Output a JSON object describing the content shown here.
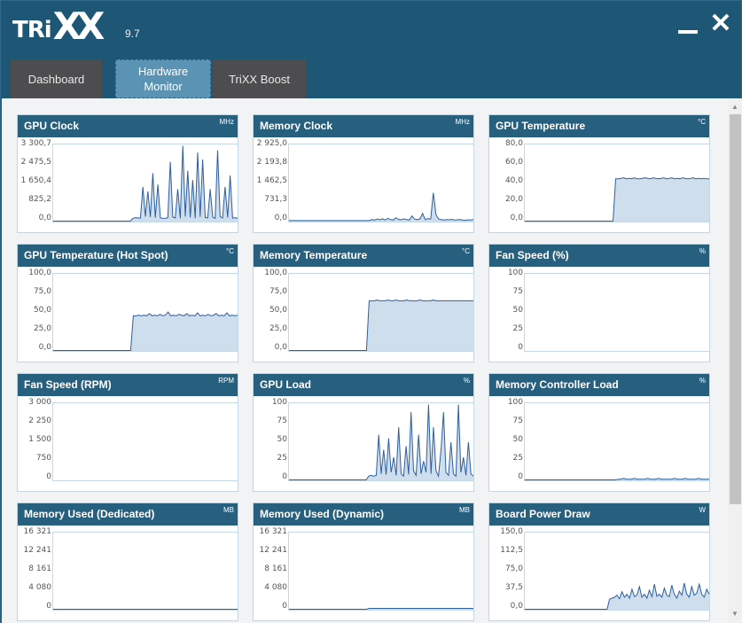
{
  "app": {
    "logo_main": "TRi",
    "logo_xx": "XX",
    "version": "9.7",
    "minimize_icon": "minimize-icon",
    "close_icon": "close-icon",
    "close_glyph": "✕"
  },
  "tabs": [
    {
      "label": "Dashboard",
      "active": false
    },
    {
      "label": "Hardware Monitor",
      "active": true
    },
    {
      "label": "TriXX Boost",
      "active": false
    }
  ],
  "colors": {
    "header": "#275f7f",
    "line": "#2d5fa0",
    "fill": "#cfdeec",
    "active_tab": "#5a93b4",
    "tab": "#4d4d4f"
  },
  "chart_data": [
    {
      "type": "area",
      "title": "GPU Clock",
      "unit": "MHz",
      "ticks": [
        "3 300,7",
        "2 475,5",
        "1 650,4",
        "825,2",
        "0,0"
      ],
      "ylim": [
        0,
        3300.7
      ],
      "values": [
        0,
        0,
        0,
        0,
        0,
        0,
        0,
        0,
        0,
        0,
        0,
        0,
        0,
        0,
        0,
        0,
        0,
        0,
        0,
        0,
        0,
        0,
        0,
        0,
        0,
        0,
        0,
        0,
        0,
        0,
        0,
        0,
        120,
        150,
        140,
        130,
        1500,
        200,
        1300,
        180,
        2100,
        150,
        1600,
        140,
        130,
        120,
        150,
        2600,
        180,
        140,
        1400,
        120,
        3300,
        200,
        2200,
        160,
        1800,
        130,
        3000,
        180,
        2700,
        160,
        140,
        1400,
        180,
        120,
        3100,
        200,
        140,
        1500,
        160,
        2000,
        130,
        150,
        120
      ]
    },
    {
      "type": "area",
      "title": "Memory Clock",
      "unit": "MHz",
      "ticks": [
        "2 925,0",
        "2 193,8",
        "1 462,5",
        "731,3",
        "0,0"
      ],
      "ylim": [
        0,
        2925
      ],
      "values": [
        20,
        20,
        20,
        20,
        20,
        20,
        20,
        20,
        20,
        20,
        20,
        20,
        20,
        20,
        20,
        20,
        20,
        20,
        20,
        20,
        20,
        20,
        20,
        20,
        20,
        20,
        20,
        20,
        20,
        20,
        20,
        60,
        40,
        80,
        50,
        90,
        40,
        110,
        60,
        40,
        130,
        70,
        50,
        90,
        60,
        40,
        200,
        80,
        60,
        90,
        300,
        60,
        100,
        80,
        1100,
        250,
        80,
        60,
        40,
        60,
        50,
        70,
        40,
        50,
        60,
        40,
        30,
        50,
        40,
        60
      ]
    },
    {
      "type": "area",
      "title": "GPU Temperature",
      "unit": "°C",
      "ticks": [
        "80,0",
        "60,0",
        "40,0",
        "20,0",
        "0,0"
      ],
      "ylim": [
        0,
        80
      ],
      "values": [
        0,
        0,
        0,
        0,
        0,
        0,
        0,
        0,
        0,
        0,
        0,
        0,
        0,
        0,
        0,
        0,
        0,
        0,
        0,
        0,
        0,
        0,
        0,
        0,
        0,
        0,
        0,
        0,
        0,
        0,
        0,
        0,
        0,
        0,
        45,
        45,
        45.5,
        46,
        45,
        45.5,
        45,
        46,
        45,
        45,
        45.5,
        46,
        45.5,
        45,
        46,
        45.5,
        45,
        45.5,
        46,
        45,
        45.5,
        46,
        45,
        45.5,
        45,
        46,
        45.5,
        45,
        45.5,
        46,
        45,
        45.5,
        45,
        45.5,
        45,
        45
      ]
    },
    {
      "type": "area",
      "title": "GPU Temperature (Hot Spot)",
      "unit": "°C",
      "ticks": [
        "100,0",
        "75,0",
        "50,0",
        "25,0",
        "0,0"
      ],
      "ylim": [
        0,
        100
      ],
      "values": [
        0,
        0,
        0,
        0,
        0,
        0,
        0,
        0,
        0,
        0,
        0,
        0,
        0,
        0,
        0,
        0,
        0,
        0,
        0,
        0,
        0,
        0,
        0,
        0,
        0,
        0,
        0,
        0,
        0,
        0,
        46,
        46,
        47,
        46,
        47,
        46,
        49,
        46,
        47,
        46,
        48,
        46,
        47,
        51,
        46,
        47,
        46,
        48,
        47,
        46,
        49,
        46,
        47,
        46,
        50,
        46,
        47,
        46,
        48,
        46,
        47,
        49,
        46,
        47,
        46,
        50,
        46,
        47,
        46,
        47
      ]
    },
    {
      "type": "area",
      "title": "Memory Temperature",
      "unit": "°C",
      "ticks": [
        "100,0",
        "75,0",
        "50,0",
        "25,0",
        "0,0"
      ],
      "ylim": [
        0,
        100
      ],
      "values": [
        0,
        0,
        0,
        0,
        0,
        0,
        0,
        0,
        0,
        0,
        0,
        0,
        0,
        0,
        0,
        0,
        0,
        0,
        0,
        0,
        0,
        0,
        0,
        0,
        0,
        0,
        0,
        0,
        0,
        0,
        66,
        66,
        66,
        67,
        66,
        66,
        66,
        67,
        66,
        66,
        67,
        66,
        66,
        66,
        67,
        66,
        66,
        66,
        66,
        67,
        66,
        66,
        66,
        66,
        67,
        66,
        66,
        66,
        66,
        66,
        66,
        66,
        66,
        66,
        66,
        66,
        66,
        66,
        66,
        66
      ]
    },
    {
      "type": "area",
      "title": "Fan Speed (%)",
      "unit": "%",
      "ticks": [
        "100",
        "75",
        "50",
        "25",
        "0"
      ],
      "ylim": [
        0,
        100
      ],
      "values": []
    },
    {
      "type": "area",
      "title": "Fan Speed (RPM)",
      "unit": "RPM",
      "ticks": [
        "3 000",
        "2 250",
        "1 500",
        "750",
        "0"
      ],
      "ylim": [
        0,
        3000
      ],
      "values": []
    },
    {
      "type": "area",
      "title": "GPU Load",
      "unit": "%",
      "ticks": [
        "100",
        "75",
        "50",
        "25",
        "0"
      ],
      "ylim": [
        0,
        100
      ],
      "values": [
        0,
        0,
        0,
        0,
        0,
        0,
        0,
        0,
        0,
        0,
        0,
        0,
        0,
        0,
        0,
        0,
        0,
        0,
        0,
        0,
        0,
        0,
        0,
        0,
        0,
        0,
        0,
        0,
        0,
        0,
        0,
        0,
        5,
        6,
        5,
        6,
        60,
        8,
        40,
        7,
        55,
        10,
        30,
        6,
        70,
        8,
        5,
        45,
        7,
        90,
        12,
        6,
        60,
        8,
        25,
        10,
        100,
        8,
        70,
        12,
        5,
        40,
        90,
        10,
        6,
        50,
        8,
        5,
        100,
        10,
        30,
        6,
        50,
        8,
        5
      ]
    },
    {
      "type": "area",
      "title": "Memory Controller Load",
      "unit": "%",
      "ticks": [
        "100",
        "75",
        "50",
        "25",
        "0"
      ],
      "ylim": [
        0,
        100
      ],
      "values": [
        0,
        0,
        0,
        0,
        0,
        0,
        0,
        0,
        0,
        0,
        0,
        0,
        0,
        0,
        0,
        0,
        0,
        0,
        0,
        0,
        0,
        0,
        0,
        0,
        0,
        0,
        0,
        0,
        0,
        0,
        0,
        0,
        0,
        0,
        0,
        1,
        1,
        2,
        1,
        1,
        1,
        2,
        1,
        1,
        1,
        1,
        2,
        1,
        1,
        1,
        2,
        1,
        1,
        1,
        1,
        1,
        2,
        1,
        1,
        1,
        2,
        1,
        1,
        1,
        1,
        2,
        1,
        1,
        1,
        1
      ]
    },
    {
      "type": "area",
      "title": "Memory Used (Dedicated)",
      "unit": "MB",
      "ticks": [
        "16 321",
        "12 241",
        "8 161",
        "4 080",
        "0"
      ],
      "ylim": [
        0,
        16321
      ],
      "values": [
        0,
        0,
        0,
        0,
        0,
        0,
        0,
        0,
        0,
        0,
        0,
        0,
        0,
        0,
        0,
        0,
        0,
        0,
        0,
        0,
        0,
        0,
        0,
        0,
        0,
        0,
        0,
        0,
        0,
        0,
        0,
        0,
        0,
        0,
        0,
        0,
        0,
        0,
        0,
        0,
        0,
        0,
        0,
        0,
        0,
        0,
        0,
        0,
        0,
        0,
        0,
        0,
        0,
        0,
        0,
        0,
        0,
        0,
        0,
        0,
        0,
        0,
        0,
        0,
        0,
        0,
        0,
        0,
        0,
        0
      ]
    },
    {
      "type": "area",
      "title": "Memory Used (Dynamic)",
      "unit": "MB",
      "ticks": [
        "16 321",
        "12 241",
        "8 161",
        "4 080",
        "0"
      ],
      "ylim": [
        0,
        16321
      ],
      "values": [
        0,
        0,
        0,
        0,
        0,
        0,
        0,
        0,
        0,
        0,
        0,
        0,
        0,
        0,
        0,
        0,
        0,
        0,
        0,
        0,
        0,
        0,
        0,
        0,
        0,
        0,
        0,
        0,
        0,
        0,
        200,
        200,
        200,
        200,
        200,
        200,
        200,
        200,
        200,
        200,
        200,
        200,
        200,
        200,
        200,
        200,
        200,
        200,
        200,
        200,
        200,
        200,
        200,
        200,
        200,
        200,
        200,
        200,
        200,
        200,
        200,
        200,
        200,
        200,
        200,
        200,
        200,
        200,
        200,
        200
      ]
    },
    {
      "type": "area",
      "title": "Board Power Draw",
      "unit": "W",
      "ticks": [
        "150,0",
        "112,5",
        "75,0",
        "37,5",
        "0,0"
      ],
      "ylim": [
        0,
        150
      ],
      "values": [
        0,
        0,
        0,
        0,
        0,
        0,
        0,
        0,
        0,
        0,
        0,
        0,
        0,
        0,
        0,
        0,
        0,
        0,
        0,
        0,
        0,
        0,
        0,
        0,
        0,
        0,
        0,
        0,
        0,
        0,
        0,
        0,
        0,
        0,
        20,
        22,
        24,
        28,
        21,
        35,
        24,
        30,
        22,
        40,
        25,
        28,
        45,
        24,
        30,
        22,
        38,
        25,
        50,
        26,
        30,
        24,
        42,
        28,
        25,
        48,
        30,
        22,
        36,
        28,
        52,
        30,
        24,
        45,
        28,
        32,
        50,
        30,
        24,
        40,
        30
      ]
    }
  ]
}
